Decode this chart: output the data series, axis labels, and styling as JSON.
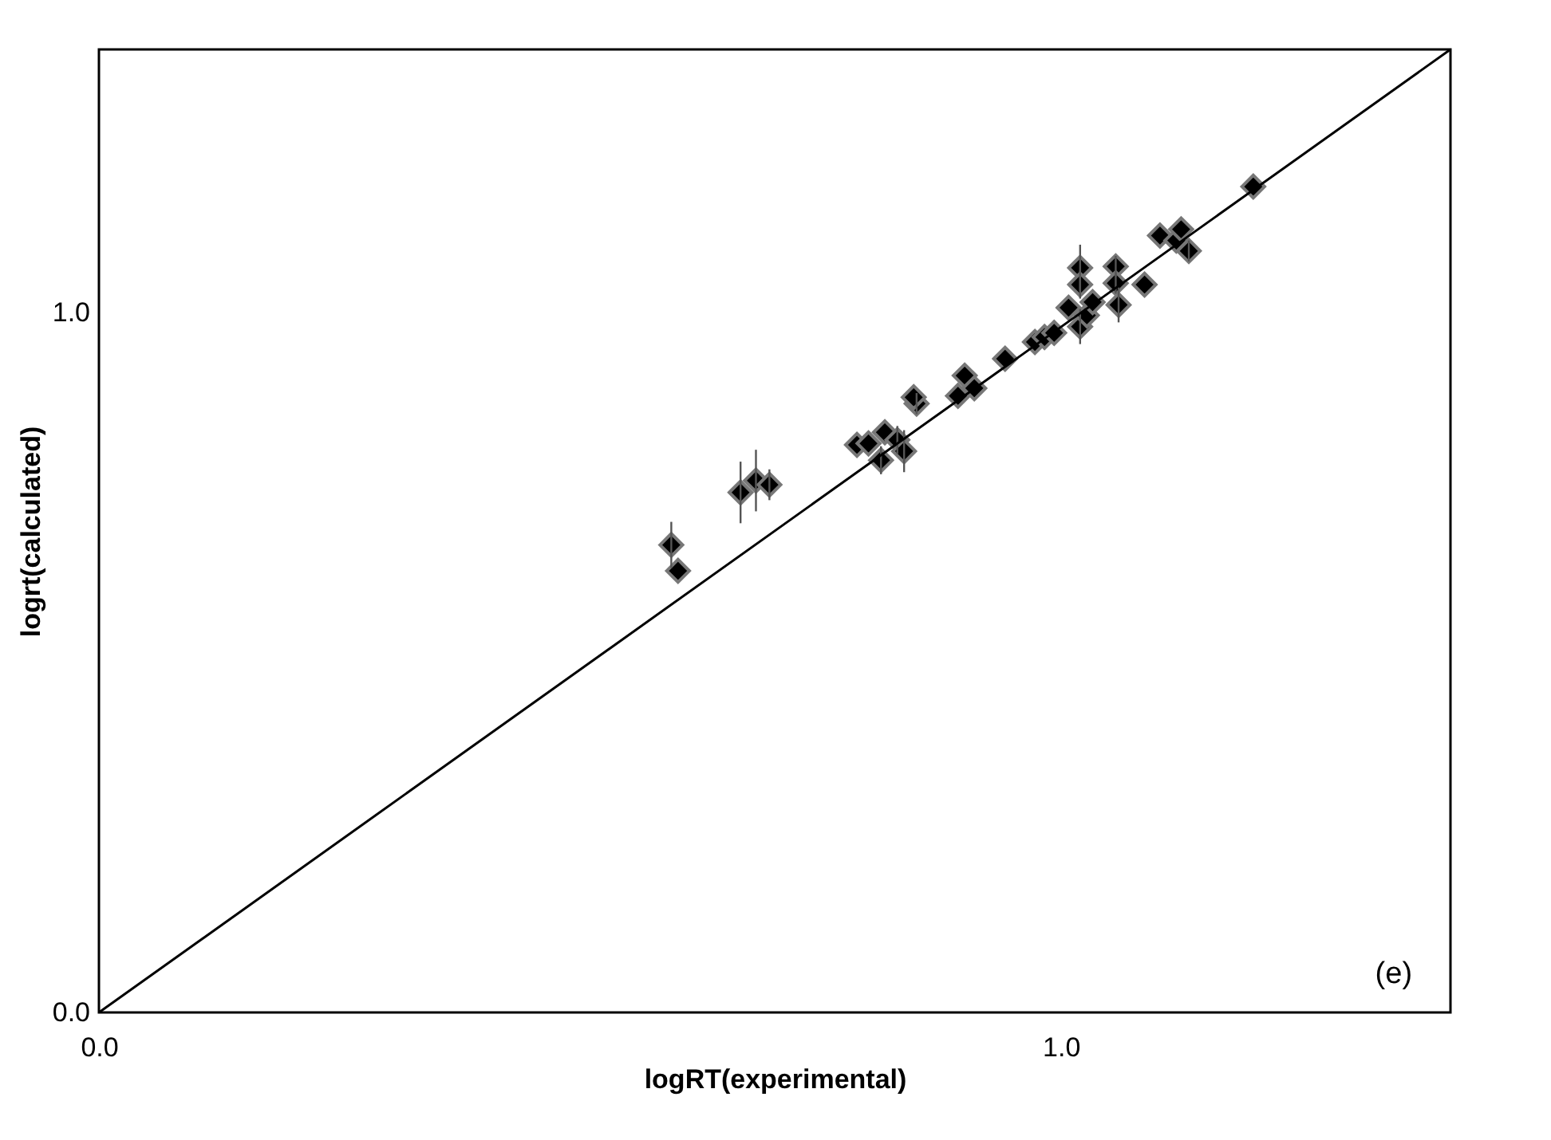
{
  "chart_data": {
    "type": "scatter",
    "xlabel": "logRT(experimental)",
    "ylabel": "logrt(calculated)",
    "annotations": [
      "(e)"
    ],
    "xlim": [
      0,
      1.405
    ],
    "ylim": [
      0,
      1.376
    ],
    "xticks": [
      {
        "value": 0,
        "label": "0.0"
      },
      {
        "value": 1,
        "label": "1.0"
      }
    ],
    "yticks": [
      {
        "value": 0,
        "label": "0.0"
      },
      {
        "value": 1,
        "label": "1.0"
      }
    ],
    "grid": false,
    "series": [
      {
        "color": "#000000",
        "marker": "diamond",
        "x": [
          0.595,
          0.602,
          0.667,
          0.683,
          0.697,
          0.788,
          0.8,
          0.813,
          0.817,
          0.83,
          0.837,
          0.85,
          0.847,
          0.893,
          0.9,
          0.91,
          0.942,
          0.973,
          0.983,
          0.993,
          1.008,
          1.02,
          1.02,
          1.02,
          1.027,
          1.033,
          1.057,
          1.057,
          1.06,
          1.087,
          1.103,
          1.12,
          1.125,
          1.133,
          1.2
        ],
        "values": [
          0.668,
          0.631,
          0.743,
          0.76,
          0.754,
          0.811,
          0.813,
          0.789,
          0.829,
          0.818,
          0.802,
          0.87,
          0.879,
          0.881,
          0.91,
          0.892,
          0.934,
          0.958,
          0.965,
          0.971,
          1.007,
          1.064,
          1.04,
          0.98,
          0.996,
          1.015,
          1.066,
          1.042,
          1.011,
          1.04,
          1.11,
          1.103,
          1.119,
          1.088,
          1.18
        ],
        "errors": [
          0.033,
          null,
          0.044,
          0.044,
          0.022,
          null,
          null,
          0.02,
          null,
          0.02,
          0.03,
          0.015,
          null,
          null,
          null,
          null,
          null,
          null,
          null,
          null,
          null,
          0.033,
          0.02,
          0.025,
          null,
          null,
          0.015,
          0.015,
          0.025,
          null,
          null,
          null,
          null,
          0.015,
          null
        ]
      },
      {
        "type": "line",
        "color": "#000000",
        "line_style": "solid",
        "x": [
          0,
          1.405
        ],
        "values": [
          0,
          1.376
        ]
      }
    ]
  }
}
